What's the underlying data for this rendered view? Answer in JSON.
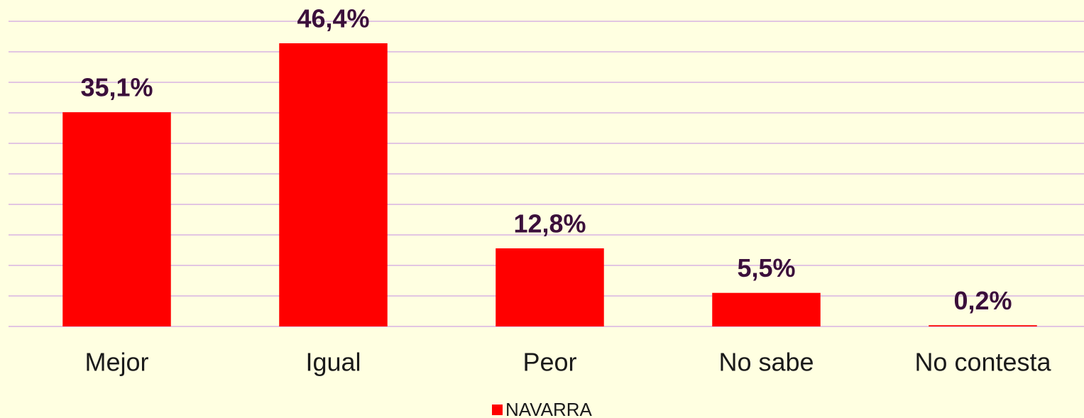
{
  "chart_data": {
    "type": "bar",
    "categories": [
      "Mejor",
      "Igual",
      "Peor",
      "No sabe",
      "No contesta"
    ],
    "series": [
      {
        "name": "NAVARRA",
        "color": "#ff0000",
        "values": [
          35.1,
          46.4,
          12.8,
          5.5,
          0.2
        ],
        "value_labels": [
          "35,1%",
          "46,4%",
          "12,8%",
          "5,5%",
          "0,2%"
        ]
      }
    ],
    "ylim": [
      0,
      50
    ],
    "yticks": [
      0,
      5,
      10,
      15,
      20,
      25,
      30,
      35,
      40,
      45,
      50
    ],
    "grid": true,
    "legend": "bottom"
  }
}
